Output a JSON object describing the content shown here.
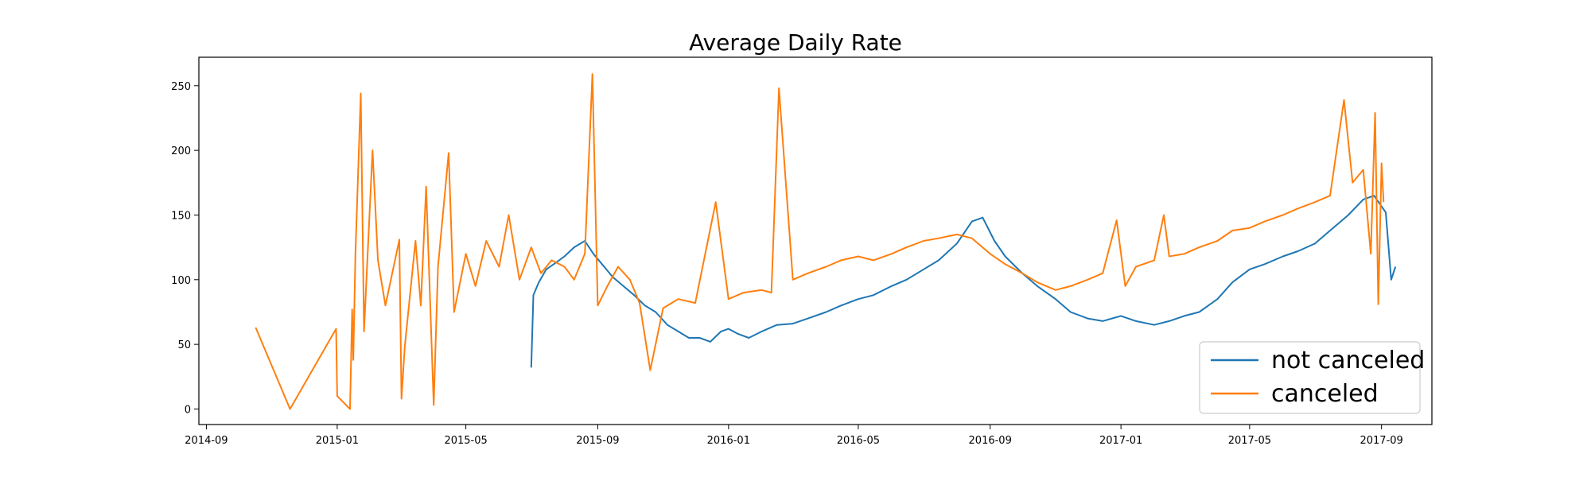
{
  "chart_data": {
    "type": "line",
    "title": "Average Daily Rate",
    "xlabel": "",
    "ylabel": "",
    "x_type": "date",
    "xlim": [
      "2014-08-25",
      "2017-10-18"
    ],
    "ylim": [
      -12,
      272
    ],
    "x_ticks": [
      "2014-09",
      "2015-01",
      "2015-05",
      "2015-09",
      "2016-01",
      "2016-05",
      "2016-09",
      "2017-01",
      "2017-05",
      "2017-09"
    ],
    "y_ticks": [
      0,
      50,
      100,
      150,
      200,
      250
    ],
    "grid": false,
    "legend_position": "lower-right",
    "series": [
      {
        "name": "not canceled",
        "color": "#1f77b4",
        "points": [
          [
            "2015-07-01",
            32
          ],
          [
            "2015-07-03",
            88
          ],
          [
            "2015-07-08",
            98
          ],
          [
            "2015-07-15",
            108
          ],
          [
            "2015-07-22",
            112
          ],
          [
            "2015-08-01",
            118
          ],
          [
            "2015-08-10",
            125
          ],
          [
            "2015-08-20",
            130
          ],
          [
            "2015-08-28",
            120
          ],
          [
            "2015-09-05",
            112
          ],
          [
            "2015-09-15",
            102
          ],
          [
            "2015-09-25",
            95
          ],
          [
            "2015-10-05",
            88
          ],
          [
            "2015-10-15",
            80
          ],
          [
            "2015-10-25",
            75
          ],
          [
            "2015-11-05",
            65
          ],
          [
            "2015-11-15",
            60
          ],
          [
            "2015-11-25",
            55
          ],
          [
            "2015-12-05",
            55
          ],
          [
            "2015-12-15",
            52
          ],
          [
            "2015-12-25",
            60
          ],
          [
            "2016-01-01",
            62
          ],
          [
            "2016-01-10",
            58
          ],
          [
            "2016-01-20",
            55
          ],
          [
            "2016-02-01",
            60
          ],
          [
            "2016-02-15",
            65
          ],
          [
            "2016-03-01",
            66
          ],
          [
            "2016-03-15",
            70
          ],
          [
            "2016-04-01",
            75
          ],
          [
            "2016-04-15",
            80
          ],
          [
            "2016-05-01",
            85
          ],
          [
            "2016-05-15",
            88
          ],
          [
            "2016-06-01",
            95
          ],
          [
            "2016-06-15",
            100
          ],
          [
            "2016-07-01",
            108
          ],
          [
            "2016-07-15",
            115
          ],
          [
            "2016-08-01",
            128
          ],
          [
            "2016-08-15",
            145
          ],
          [
            "2016-08-25",
            148
          ],
          [
            "2016-09-05",
            130
          ],
          [
            "2016-09-15",
            118
          ],
          [
            "2016-10-01",
            105
          ],
          [
            "2016-10-15",
            95
          ],
          [
            "2016-11-01",
            85
          ],
          [
            "2016-11-15",
            75
          ],
          [
            "2016-12-01",
            70
          ],
          [
            "2016-12-15",
            68
          ],
          [
            "2017-01-01",
            72
          ],
          [
            "2017-01-15",
            68
          ],
          [
            "2017-02-01",
            65
          ],
          [
            "2017-02-15",
            68
          ],
          [
            "2017-03-01",
            72
          ],
          [
            "2017-03-15",
            75
          ],
          [
            "2017-04-01",
            85
          ],
          [
            "2017-04-15",
            98
          ],
          [
            "2017-05-01",
            108
          ],
          [
            "2017-05-15",
            112
          ],
          [
            "2017-06-01",
            118
          ],
          [
            "2017-06-15",
            122
          ],
          [
            "2017-07-01",
            128
          ],
          [
            "2017-07-15",
            138
          ],
          [
            "2017-08-01",
            150
          ],
          [
            "2017-08-15",
            162
          ],
          [
            "2017-08-25",
            165
          ],
          [
            "2017-09-05",
            152
          ],
          [
            "2017-09-10",
            100
          ],
          [
            "2017-09-14",
            110
          ]
        ]
      },
      {
        "name": "canceled",
        "color": "#ff7f0e",
        "points": [
          [
            "2014-10-17",
            63
          ],
          [
            "2014-11-18",
            0
          ],
          [
            "2014-12-31",
            62
          ],
          [
            "2015-01-01",
            10
          ],
          [
            "2015-01-13",
            0
          ],
          [
            "2015-01-15",
            77
          ],
          [
            "2015-01-16",
            38
          ],
          [
            "2015-01-18",
            120
          ],
          [
            "2015-01-23",
            244
          ],
          [
            "2015-01-26",
            60
          ],
          [
            "2015-02-03",
            200
          ],
          [
            "2015-02-08",
            115
          ],
          [
            "2015-02-15",
            80
          ],
          [
            "2015-02-28",
            131
          ],
          [
            "2015-03-02",
            8
          ],
          [
            "2015-03-05",
            48
          ],
          [
            "2015-03-15",
            130
          ],
          [
            "2015-03-20",
            80
          ],
          [
            "2015-03-25",
            172
          ],
          [
            "2015-04-01",
            3
          ],
          [
            "2015-04-05",
            110
          ],
          [
            "2015-04-15",
            198
          ],
          [
            "2015-04-20",
            75
          ],
          [
            "2015-05-01",
            120
          ],
          [
            "2015-05-10",
            95
          ],
          [
            "2015-05-20",
            130
          ],
          [
            "2015-06-01",
            110
          ],
          [
            "2015-06-10",
            150
          ],
          [
            "2015-06-20",
            100
          ],
          [
            "2015-07-01",
            125
          ],
          [
            "2015-07-10",
            105
          ],
          [
            "2015-07-20",
            115
          ],
          [
            "2015-08-01",
            110
          ],
          [
            "2015-08-10",
            100
          ],
          [
            "2015-08-20",
            120
          ],
          [
            "2015-08-27",
            259
          ],
          [
            "2015-09-01",
            80
          ],
          [
            "2015-09-10",
            95
          ],
          [
            "2015-09-20",
            110
          ],
          [
            "2015-10-01",
            100
          ],
          [
            "2015-10-10",
            82
          ],
          [
            "2015-10-20",
            30
          ],
          [
            "2015-11-01",
            78
          ],
          [
            "2015-11-15",
            85
          ],
          [
            "2015-12-01",
            82
          ],
          [
            "2015-12-20",
            160
          ],
          [
            "2016-01-01",
            85
          ],
          [
            "2016-01-15",
            90
          ],
          [
            "2016-02-01",
            92
          ],
          [
            "2016-02-10",
            90
          ],
          [
            "2016-02-17",
            248
          ],
          [
            "2016-03-01",
            100
          ],
          [
            "2016-03-15",
            105
          ],
          [
            "2016-04-01",
            110
          ],
          [
            "2016-04-15",
            115
          ],
          [
            "2016-05-01",
            118
          ],
          [
            "2016-05-15",
            115
          ],
          [
            "2016-06-01",
            120
          ],
          [
            "2016-06-15",
            125
          ],
          [
            "2016-07-01",
            130
          ],
          [
            "2016-07-15",
            132
          ],
          [
            "2016-08-01",
            135
          ],
          [
            "2016-08-15",
            132
          ],
          [
            "2016-09-01",
            120
          ],
          [
            "2016-09-15",
            112
          ],
          [
            "2016-10-01",
            105
          ],
          [
            "2016-10-15",
            98
          ],
          [
            "2016-11-01",
            92
          ],
          [
            "2016-11-15",
            95
          ],
          [
            "2016-12-01",
            100
          ],
          [
            "2016-12-15",
            105
          ],
          [
            "2016-12-28",
            146
          ],
          [
            "2017-01-05",
            95
          ],
          [
            "2017-01-15",
            110
          ],
          [
            "2017-02-01",
            115
          ],
          [
            "2017-02-10",
            150
          ],
          [
            "2017-02-15",
            118
          ],
          [
            "2017-03-01",
            120
          ],
          [
            "2017-03-15",
            125
          ],
          [
            "2017-04-01",
            130
          ],
          [
            "2017-04-15",
            138
          ],
          [
            "2017-05-01",
            140
          ],
          [
            "2017-05-15",
            145
          ],
          [
            "2017-06-01",
            150
          ],
          [
            "2017-06-15",
            155
          ],
          [
            "2017-07-01",
            160
          ],
          [
            "2017-07-15",
            165
          ],
          [
            "2017-07-28",
            239
          ],
          [
            "2017-08-05",
            175
          ],
          [
            "2017-08-15",
            185
          ],
          [
            "2017-08-22",
            120
          ],
          [
            "2017-08-26",
            229
          ],
          [
            "2017-08-29",
            81
          ],
          [
            "2017-09-01",
            190
          ],
          [
            "2017-09-03",
            160
          ]
        ]
      }
    ]
  }
}
